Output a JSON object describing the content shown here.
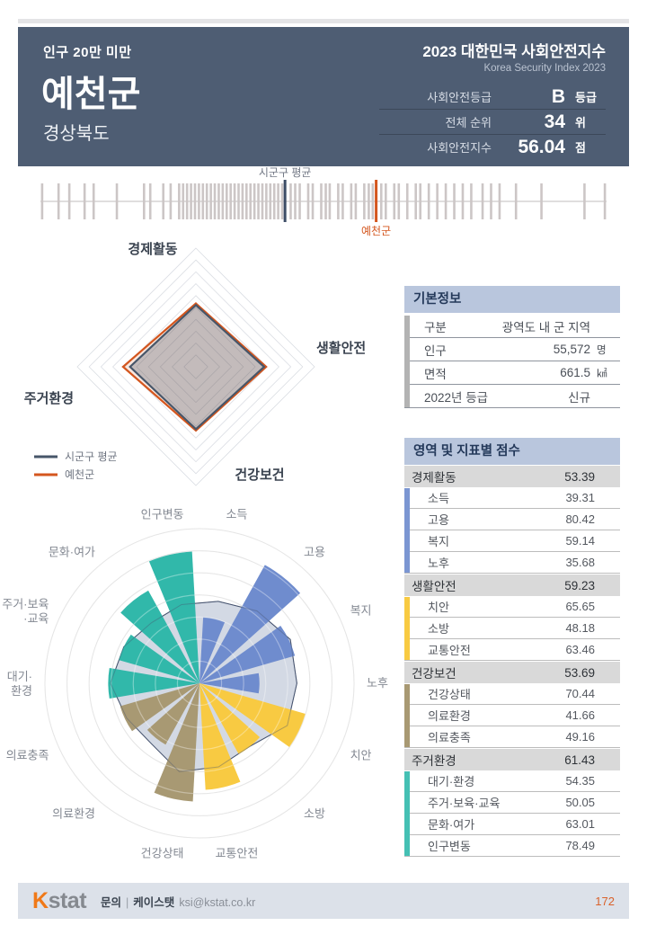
{
  "header": {
    "badge": "인구 20만 미만",
    "title": "예천군",
    "region": "경상북도",
    "program_title": "2023 대한민국 사회안전지수",
    "program_subtitle": "Korea Security Index 2023",
    "stats": [
      {
        "label": "사회안전등급",
        "value": "B",
        "unit": "등급"
      },
      {
        "label": "전체 순위",
        "value": "34",
        "unit": "위"
      },
      {
        "label": "사회안전지수",
        "value": "56.04",
        "unit": "점"
      }
    ]
  },
  "basic_info": {
    "title": "기본정보",
    "rows": [
      {
        "label": "구분",
        "value": "광역도 내 군 지역",
        "unit": ""
      },
      {
        "label": "인구",
        "value": "55,572",
        "unit": "명"
      },
      {
        "label": "면적",
        "value": "661.5",
        "unit": "㎢"
      },
      {
        "label": "2022년 등급",
        "value": "신규",
        "unit": ""
      }
    ]
  },
  "score_table": {
    "title": "영역 및 지표별 점수",
    "groups": [
      {
        "name": "경제활동",
        "score": 53.39,
        "color": "#7b96d2",
        "items": [
          {
            "label": "소득",
            "value": 39.31
          },
          {
            "label": "고용",
            "value": 80.42
          },
          {
            "label": "복지",
            "value": 59.14
          },
          {
            "label": "노후",
            "value": 35.68
          }
        ]
      },
      {
        "name": "생활안전",
        "score": 59.23,
        "color": "#f8ca42",
        "items": [
          {
            "label": "치안",
            "value": 65.65
          },
          {
            "label": "소방",
            "value": 48.18
          },
          {
            "label": "교통안전",
            "value": 63.46
          }
        ]
      },
      {
        "name": "건강보건",
        "score": 53.69,
        "color": "#a89973",
        "items": [
          {
            "label": "건강상태",
            "value": 70.44
          },
          {
            "label": "의료환경",
            "value": 41.66
          },
          {
            "label": "의료충족",
            "value": 49.16
          }
        ]
      },
      {
        "name": "주거환경",
        "score": 61.43,
        "color": "#45c0b4",
        "items": [
          {
            "label": "대기·환경",
            "value": 54.35
          },
          {
            "label": "주거·보육·교육",
            "value": 50.05
          },
          {
            "label": "문화·여가",
            "value": 63.01
          },
          {
            "label": "인구변동",
            "value": 78.49
          }
        ]
      }
    ]
  },
  "chart_data": [
    {
      "id": "rank_strip",
      "type": "rug",
      "title": "",
      "tick_color": "#ccc6c6",
      "line_color": "#c2bdbd",
      "markers": [
        {
          "name": "시군구 평균",
          "pos": 43.2,
          "color": "#3d4d66",
          "label_position": "above",
          "label_color": "#717784"
        },
        {
          "name": "예천군",
          "pos": 59.3,
          "color": "#d4561e",
          "label_position": "below",
          "label_color": "#d4561e"
        }
      ],
      "ticks": [
        0.3,
        3.2,
        5.1,
        7.8,
        9.4,
        13.5,
        18.3,
        19.4,
        21.7,
        23.0,
        24.5,
        25.2,
        25.9,
        26.6,
        27.3,
        28.0,
        28.7,
        29.4,
        30.1,
        30.8,
        31.5,
        32.2,
        32.9,
        33.6,
        34.3,
        35.0,
        35.7,
        36.4,
        37.1,
        37.8,
        38.5,
        39.2,
        39.9,
        40.6,
        41.3,
        42.0,
        42.7,
        44.2,
        45.0,
        45.8,
        47.3,
        48.1,
        49.6,
        50.4,
        51.1,
        52.6,
        53.4,
        54.9,
        55.7,
        57.2,
        58.0,
        58.7,
        60.2,
        61.0,
        62.5,
        63.3,
        64.8,
        66.3,
        67.1,
        68.6,
        70.1,
        71.6,
        73.1,
        74.6,
        76.1,
        78.1,
        79.6,
        81.1,
        84.0,
        88.5,
        96.1,
        99.7
      ]
    },
    {
      "id": "domain_radar",
      "type": "radar",
      "categories": [
        "경제활동",
        "생활안전",
        "건강보건",
        "주거환경"
      ],
      "rmax": 100,
      "rings": 10,
      "grid_color": "#dadde3",
      "series": [
        {
          "name": "예천군",
          "values": [
            53.39,
            59.23,
            53.69,
            61.43
          ],
          "color": "#d4561e",
          "fill": "rgba(217,94,34,0.15)"
        },
        {
          "name": "시군구 평균",
          "values": [
            52.0,
            57.5,
            52.5,
            55.5
          ],
          "color": "#475669",
          "fill": "rgba(71,86,105,0.30)"
        }
      ],
      "legend": [
        {
          "label": "시군구 평균",
          "color": "#475669"
        },
        {
          "label": "예천군",
          "color": "#d4561e"
        }
      ]
    },
    {
      "id": "indicator_rose",
      "type": "rose",
      "categories": [
        "소득",
        "고용",
        "복지",
        "노후",
        "치안",
        "소방",
        "교통안전",
        "건강상태",
        "의료환경",
        "의료충족",
        "대기·환경",
        "주거·보육·교육",
        "문화·여가",
        "인구변동"
      ],
      "label_lines": {
        "10": [
          "대기·",
          "환경"
        ],
        "11": [
          "주거·보육",
          "·교육"
        ]
      },
      "category_colors": [
        "#6f8cce",
        "#6f8cce",
        "#6f8cce",
        "#6f8cce",
        "#f8ca42",
        "#f8ca42",
        "#f8ca42",
        "#a89973",
        "#a89973",
        "#a89973",
        "#31b8aa",
        "#31b8aa",
        "#31b8aa",
        "#31b8aa"
      ],
      "rmax": 92,
      "rings": 7,
      "grid_color": "#d8d8d8",
      "label_color": "#838892",
      "series": [
        {
          "name": "예천군",
          "render": "bars",
          "values": [
            39.31,
            80.42,
            59.14,
            35.68,
            65.65,
            48.18,
            63.46,
            70.44,
            41.66,
            49.16,
            54.35,
            50.05,
            63.01,
            78.49
          ]
        },
        {
          "name": "시군구 평균",
          "render": "blob",
          "fill": "#d3d9e4",
          "stroke": "#45536e",
          "values": [
            50,
            55,
            60,
            58,
            58,
            48,
            51,
            54,
            46,
            48,
            53,
            50,
            46,
            48
          ]
        }
      ]
    }
  ],
  "footer": {
    "logo_k": "K",
    "logo_rest": "stat",
    "contact_label": "문의",
    "contact_sep": "|",
    "contact_org": "케이스탯",
    "contact_email": "ksi@kstat.co.kr",
    "page": "172"
  }
}
